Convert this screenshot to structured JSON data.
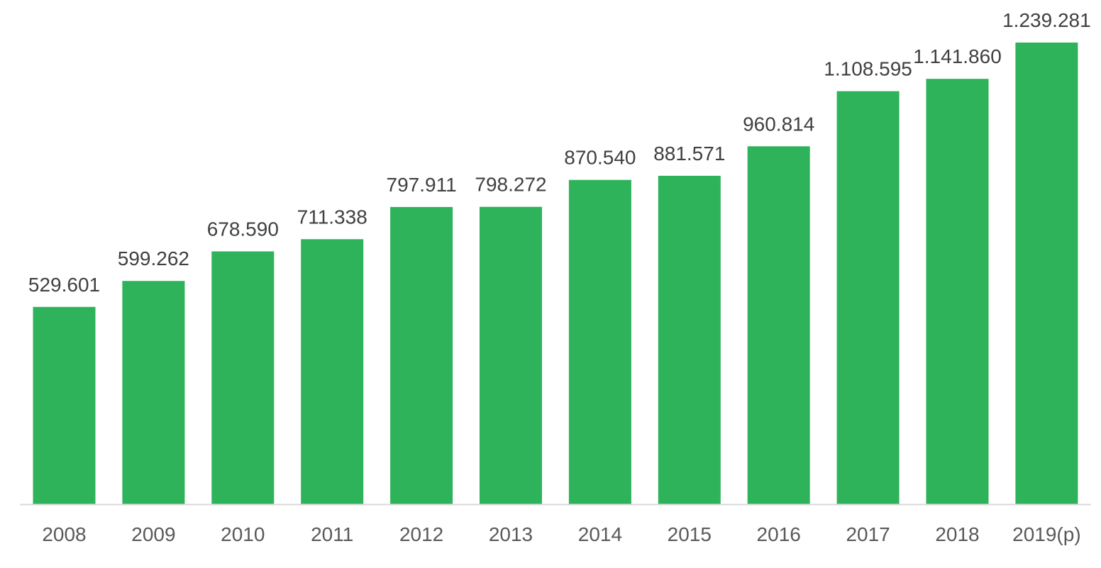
{
  "chart_data": {
    "type": "bar",
    "title": "",
    "xlabel": "",
    "ylabel": "",
    "categories": [
      "2008",
      "2009",
      "2010",
      "2011",
      "2012",
      "2013",
      "2014",
      "2015",
      "2016",
      "2017",
      "2018",
      "2019(p)"
    ],
    "values": [
      529601,
      599262,
      678590,
      711338,
      797911,
      798272,
      870540,
      881571,
      960814,
      1108595,
      1141860,
      1239281
    ],
    "value_labels": [
      "529.601",
      "599.262",
      "678.590",
      "711.338",
      "797.911",
      "798.272",
      "870.540",
      "881.571",
      "960.814",
      "1.108.595",
      "1.141.860",
      "1.239.281"
    ],
    "ylim": [
      0,
      1239281
    ],
    "grid": false,
    "legend": "none",
    "colors": {
      "bar": "#2EB35A",
      "axis": "#D9D9D9",
      "data_label": "#404040",
      "tick_label": "#595959"
    }
  }
}
